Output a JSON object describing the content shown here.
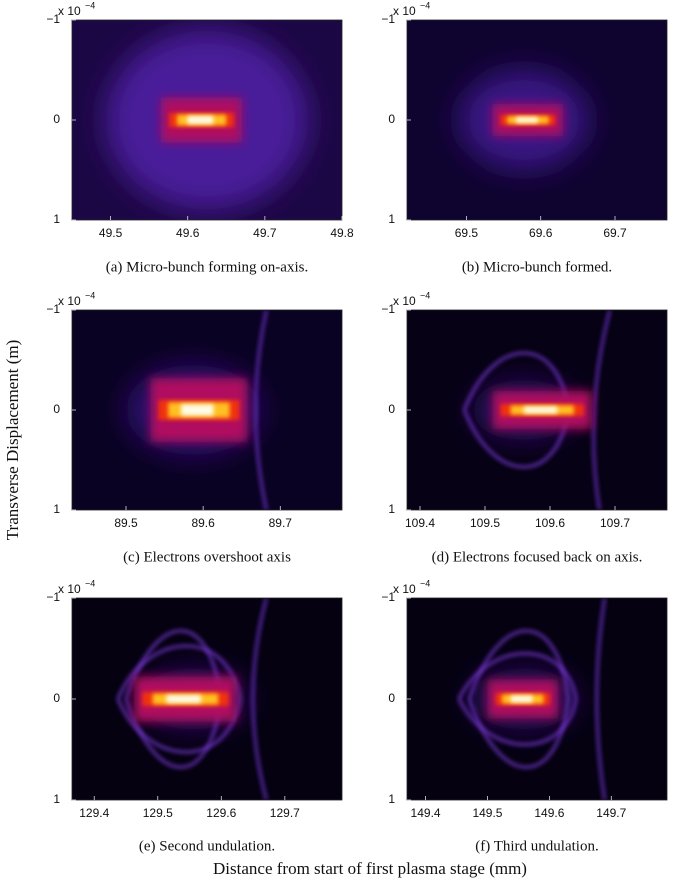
{
  "chart_data": [
    {
      "type": "heatmap",
      "caption": "(a) Micro-bunch forming on-axis.",
      "xlim": [
        49.45,
        49.8
      ],
      "xticks": [
        49.5,
        49.6,
        49.7,
        49.8
      ],
      "ylim": [
        -1,
        1
      ],
      "yticks": [
        {
          "value": -1,
          "label": "−1"
        },
        0,
        1
      ],
      "y_multiplier_base": "x 10",
      "y_multiplier_exponent": "−4"
    },
    {
      "type": "heatmap",
      "caption": "(b) Micro-bunch formed.",
      "xlim": [
        69.42,
        69.77
      ],
      "xticks": [
        69.5,
        69.6,
        69.7
      ],
      "ylim": [
        -1,
        1
      ],
      "yticks": [
        {
          "value": -1,
          "label": "−1"
        },
        0,
        1
      ],
      "y_multiplier_base": "x 10",
      "y_multiplier_exponent": "−4"
    },
    {
      "type": "heatmap",
      "caption": "(c) Electrons overshoot axis",
      "xlim": [
        89.43,
        89.78
      ],
      "xticks": [
        89.5,
        89.6,
        89.7
      ],
      "ylim": [
        -1,
        1
      ],
      "yticks": [
        {
          "value": -1,
          "label": "−1"
        },
        0,
        1
      ],
      "y_multiplier_base": "x 10",
      "y_multiplier_exponent": "−4"
    },
    {
      "type": "heatmap",
      "caption": "(d) Electrons focused back on axis.",
      "xlim": [
        109.38,
        109.78
      ],
      "xticks": [
        109.4,
        109.5,
        109.6,
        109.7
      ],
      "ylim": [
        -1,
        1
      ],
      "yticks": [
        {
          "value": -1,
          "label": "−1"
        },
        0,
        1
      ],
      "y_multiplier_base": "x 10",
      "y_multiplier_exponent": "−4"
    },
    {
      "type": "heatmap",
      "caption": "(e) Second undulation.",
      "xlim": [
        129.365,
        129.79
      ],
      "xticks": [
        129.4,
        129.5,
        129.6,
        129.7
      ],
      "ylim": [
        -1,
        1
      ],
      "yticks": [
        {
          "value": -1,
          "label": "−1"
        },
        0,
        1
      ],
      "y_multiplier_base": "x 10",
      "y_multiplier_exponent": "−4"
    },
    {
      "type": "heatmap",
      "caption": "(f) Third undulation.",
      "xlim": [
        149.37,
        149.79
      ],
      "xticks": [
        149.4,
        149.5,
        149.6,
        149.7
      ],
      "ylim": [
        -1,
        1
      ],
      "yticks": [
        {
          "value": -1,
          "label": "−1"
        },
        0,
        1
      ],
      "y_multiplier_base": "x 10",
      "y_multiplier_exponent": "−4"
    }
  ],
  "figure": {
    "ylabel": "Transverse Displacement (m)",
    "xlabel": "Distance from start of first plasma stage (mm)"
  }
}
